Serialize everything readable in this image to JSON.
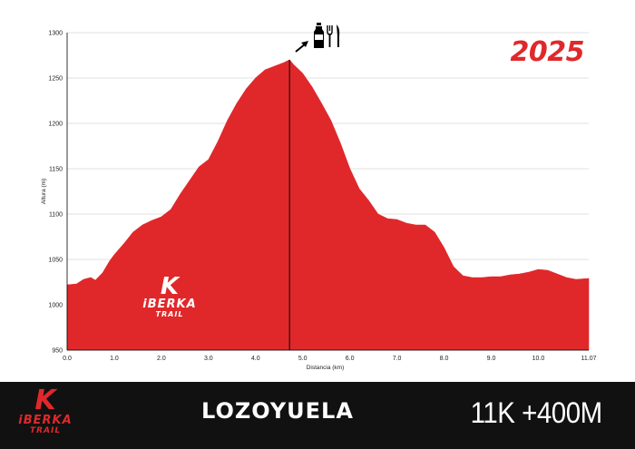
{
  "year_label": "2025",
  "race": {
    "name": "LOZOYUELA",
    "stats": "11K +400M"
  },
  "brand": {
    "mark": "K",
    "name": "iBERKA",
    "tagline": "TRAIL"
  },
  "aid_station": {
    "x": 4.72,
    "icons": [
      "arrow-icon",
      "water-bottle-icon",
      "fork-icon",
      "knife-icon"
    ]
  },
  "colors": {
    "fill": "#e0282b",
    "footer": "#111111",
    "marker": "#000000"
  },
  "chart_data": {
    "type": "area",
    "xlabel": "Distancia (km)",
    "ylabel": "Altura (m)",
    "xlim": [
      0,
      11.07
    ],
    "ylim": [
      950,
      1300
    ],
    "xticks": [
      0.0,
      1.0,
      2.0,
      3.0,
      4.0,
      5.0,
      6.0,
      7.0,
      8.0,
      9.0,
      10.0,
      11.07
    ],
    "xtick_labels": [
      "0.0",
      "1.0",
      "2.0",
      "3.0",
      "4.0",
      "5.0",
      "6.0",
      "7.0",
      "8.0",
      "9.0",
      "10.0",
      "11.07"
    ],
    "yticks": [
      950,
      1000,
      1050,
      1100,
      1150,
      1200,
      1250,
      1300
    ],
    "grid": true,
    "x": [
      0,
      0.2,
      0.35,
      0.5,
      0.6,
      0.75,
      0.9,
      1.0,
      1.2,
      1.4,
      1.6,
      1.8,
      2.0,
      2.2,
      2.4,
      2.6,
      2.8,
      3.0,
      3.2,
      3.4,
      3.6,
      3.8,
      4.0,
      4.2,
      4.4,
      4.6,
      4.72,
      4.8,
      5.0,
      5.2,
      5.4,
      5.6,
      5.8,
      6.0,
      6.2,
      6.4,
      6.6,
      6.8,
      7.0,
      7.2,
      7.4,
      7.6,
      7.8,
      8.0,
      8.2,
      8.4,
      8.6,
      8.8,
      9.0,
      9.2,
      9.4,
      9.6,
      9.8,
      10.0,
      10.2,
      10.4,
      10.6,
      10.8,
      11.07
    ],
    "y": [
      1022,
      1023,
      1028,
      1030,
      1027,
      1035,
      1048,
      1055,
      1067,
      1080,
      1088,
      1093,
      1097,
      1105,
      1122,
      1137,
      1152,
      1160,
      1180,
      1203,
      1222,
      1238,
      1250,
      1259,
      1263,
      1267,
      1270,
      1265,
      1255,
      1240,
      1222,
      1203,
      1178,
      1150,
      1128,
      1115,
      1100,
      1095,
      1094,
      1090,
      1088,
      1088,
      1080,
      1063,
      1042,
      1032,
      1030,
      1030,
      1031,
      1031,
      1033,
      1034,
      1036,
      1039,
      1038,
      1034,
      1030,
      1028,
      1029
    ]
  }
}
